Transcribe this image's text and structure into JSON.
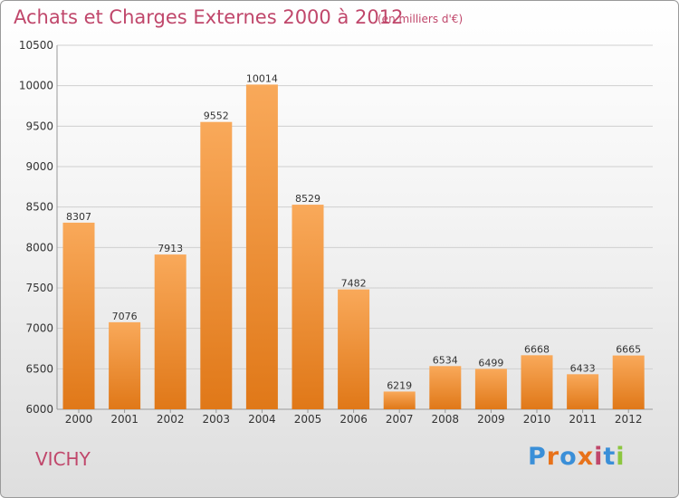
{
  "header": {
    "title": "Achats et Charges Externes 2000 à 2012",
    "subtitle": "(en milliers d'€)"
  },
  "footer": {
    "city": "VICHY",
    "logo_text": "Proxiti",
    "logo_colors": [
      "#3a8fd8",
      "#e8721a",
      "#3a8fd8",
      "#e8721a",
      "#c0476b",
      "#3a8fd8",
      "#8cc63f"
    ]
  },
  "colors": {
    "bar_light": "#f9a95a",
    "bar_dark": "#e07818",
    "accent": "#c0476b"
  },
  "chart_data": {
    "type": "bar",
    "title": "Achats et Charges Externes 2000 à 2012",
    "subtitle": "(en milliers d'€)",
    "categories": [
      "2000",
      "2001",
      "2002",
      "2003",
      "2004",
      "2005",
      "2006",
      "2007",
      "2008",
      "2009",
      "2010",
      "2011",
      "2012"
    ],
    "values": [
      8307,
      7076,
      7913,
      9552,
      10014,
      8529,
      7482,
      6219,
      6534,
      6499,
      6668,
      6433,
      6665
    ],
    "ylim": [
      6000,
      10500
    ],
    "yticks": [
      6000,
      6500,
      7000,
      7500,
      8000,
      8500,
      9000,
      9500,
      10000,
      10500
    ],
    "grid": true,
    "xlabel": "",
    "ylabel": ""
  }
}
